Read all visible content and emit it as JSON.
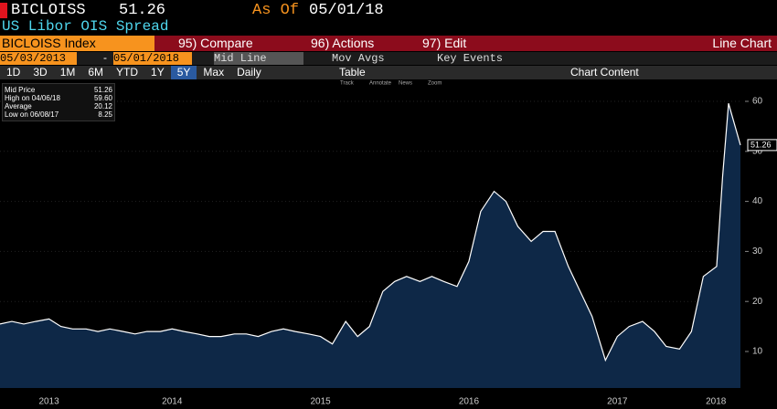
{
  "header": {
    "ticker": "BICLOISS",
    "price": "51.26",
    "as_of_label": "As Of",
    "as_of_date": "05/01/18",
    "description": "US Libor OIS Spread"
  },
  "menu": {
    "security": "BICLOISS Index",
    "compare": "95) Compare",
    "actions": "96) Actions",
    "edit": "97) Edit",
    "chart_kind": "Line Chart"
  },
  "range": {
    "start": "05/03/2013",
    "separator": "-",
    "end": "05/01/2018",
    "mode": "Mid Line",
    "mov_avgs": "Mov Avgs",
    "key_events": "Key Events"
  },
  "periods": [
    "1D",
    "3D",
    "1M",
    "6M",
    "YTD",
    "1Y",
    "5Y",
    "Max"
  ],
  "frequency": "Daily",
  "table": "Table",
  "chart_content": "Chart Content",
  "tools": [
    "Track",
    "Annotate",
    "News",
    "Zoom"
  ],
  "stats": [
    {
      "label": "Mid Price",
      "value": "51.26"
    },
    {
      "label": "High on 04/06/18",
      "value": "59.60"
    },
    {
      "label": "Average",
      "value": "20.12"
    },
    {
      "label": "Low on 06/08/17",
      "value": "8.25"
    }
  ],
  "chart_data": {
    "type": "line",
    "x": [
      2013.34,
      2013.42,
      2013.5,
      2013.58,
      2013.67,
      2013.75,
      2013.83,
      2013.92,
      2014.0,
      2014.08,
      2014.17,
      2014.25,
      2014.33,
      2014.42,
      2014.5,
      2014.58,
      2014.67,
      2014.75,
      2014.83,
      2014.92,
      2015.0,
      2015.08,
      2015.17,
      2015.25,
      2015.33,
      2015.42,
      2015.5,
      2015.58,
      2015.67,
      2015.75,
      2015.83,
      2015.92,
      2016.0,
      2016.08,
      2016.17,
      2016.25,
      2016.33,
      2016.42,
      2016.5,
      2016.58,
      2016.67,
      2016.75,
      2016.83,
      2016.92,
      2017.0,
      2017.08,
      2017.17,
      2017.25,
      2017.33,
      2017.42,
      2017.5,
      2017.58,
      2017.67,
      2017.75,
      2017.83,
      2017.92,
      2018.0,
      2018.08,
      2018.17,
      2018.21,
      2018.25,
      2018.33
    ],
    "series": [
      {
        "name": "BICLOISS",
        "color": "#ffffff",
        "values": [
          15.5,
          16,
          15.5,
          16,
          16.5,
          15,
          14.5,
          14.5,
          14,
          14.5,
          14,
          13.5,
          14,
          14,
          14.5,
          14,
          13.5,
          13,
          13,
          13.5,
          13.5,
          13,
          14,
          14.5,
          14,
          13.5,
          13,
          11.5,
          16,
          13,
          15,
          22,
          24,
          25,
          24,
          25,
          24,
          23,
          28,
          38,
          42,
          40,
          35,
          32,
          34,
          34,
          27,
          22,
          17,
          8.25,
          13,
          15,
          16,
          14,
          11,
          10.5,
          14,
          25,
          27,
          45,
          59.6,
          51.26
        ]
      }
    ],
    "xlim": [
      2013.34,
      2018.33
    ],
    "xticks": [
      {
        "value": 2013.67,
        "label": "2013"
      },
      {
        "value": 2014.5,
        "label": "2014"
      },
      {
        "value": 2015.5,
        "label": "2015"
      },
      {
        "value": 2016.5,
        "label": "2016"
      },
      {
        "value": 2017.5,
        "label": "2017"
      },
      {
        "value": 2018.165,
        "label": "2018"
      }
    ],
    "ylim": [
      2.7,
      64.2
    ],
    "yticks": [
      10,
      20,
      30,
      40,
      50,
      60
    ],
    "grid": true,
    "area_color": "#0e2847"
  }
}
